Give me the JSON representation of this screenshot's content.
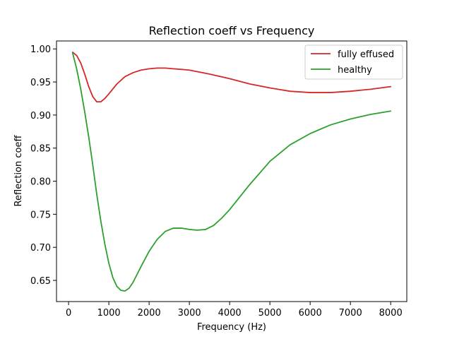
{
  "chart_data": {
    "type": "line",
    "title": "Reflection coeff vs Frequency",
    "xlabel": "Frequency (Hz)",
    "ylabel": "Reflection coeff",
    "xlim": [
      -300,
      8400
    ],
    "ylim": [
      0.618,
      1.012
    ],
    "xticks": [
      0,
      1000,
      2000,
      3000,
      4000,
      5000,
      6000,
      7000,
      8000
    ],
    "yticks": [
      0.65,
      0.7,
      0.75,
      0.8,
      0.85,
      0.9,
      0.95,
      1.0
    ],
    "xtick_labels": [
      "0",
      "1000",
      "2000",
      "3000",
      "4000",
      "5000",
      "6000",
      "7000",
      "8000"
    ],
    "ytick_labels": [
      "0.65",
      "0.70",
      "0.75",
      "0.80",
      "0.85",
      "0.90",
      "0.95",
      "1.00"
    ],
    "grid": false,
    "legend_position": "top-right",
    "series": [
      {
        "name": "fully effused",
        "color": "#d62728",
        "x": [
          100,
          200,
          300,
          400,
          500,
          600,
          700,
          800,
          900,
          1000,
          1200,
          1400,
          1600,
          1800,
          2000,
          2200,
          2400,
          2600,
          2800,
          3000,
          3500,
          4000,
          4500,
          5000,
          5500,
          6000,
          6500,
          7000,
          7500,
          8000
        ],
        "y": [
          0.995,
          0.99,
          0.979,
          0.962,
          0.943,
          0.928,
          0.92,
          0.92,
          0.925,
          0.932,
          0.947,
          0.958,
          0.964,
          0.968,
          0.97,
          0.971,
          0.971,
          0.97,
          0.969,
          0.968,
          0.962,
          0.955,
          0.947,
          0.941,
          0.936,
          0.934,
          0.934,
          0.936,
          0.939,
          0.943
        ]
      },
      {
        "name": "healthy",
        "color": "#2ca02c",
        "x": [
          100,
          200,
          300,
          400,
          500,
          600,
          700,
          800,
          900,
          1000,
          1100,
          1200,
          1300,
          1400,
          1500,
          1600,
          1700,
          1800,
          2000,
          2200,
          2400,
          2600,
          2800,
          3000,
          3200,
          3400,
          3600,
          3800,
          4000,
          4500,
          5000,
          5500,
          6000,
          6500,
          7000,
          7500,
          8000
        ],
        "y": [
          0.994,
          0.97,
          0.94,
          0.905,
          0.867,
          0.825,
          0.78,
          0.74,
          0.705,
          0.676,
          0.654,
          0.641,
          0.635,
          0.634,
          0.638,
          0.647,
          0.659,
          0.671,
          0.694,
          0.712,
          0.724,
          0.729,
          0.729,
          0.727,
          0.726,
          0.727,
          0.733,
          0.744,
          0.757,
          0.795,
          0.83,
          0.855,
          0.872,
          0.885,
          0.894,
          0.901,
          0.906
        ]
      }
    ]
  }
}
